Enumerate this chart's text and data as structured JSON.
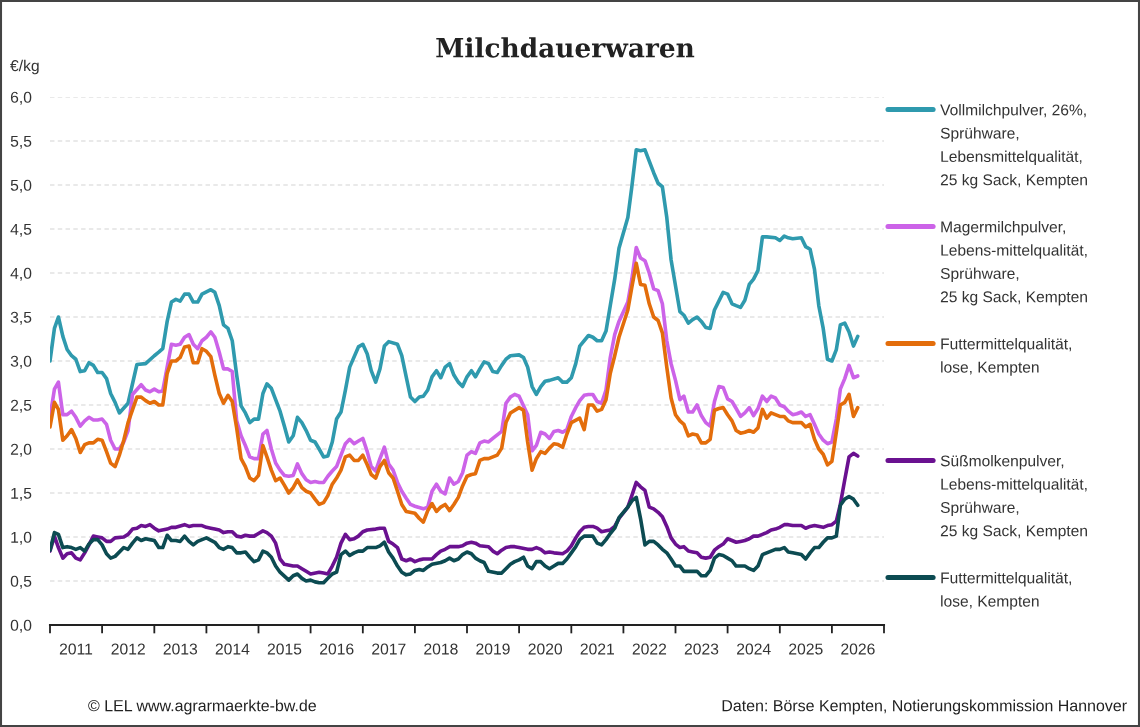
{
  "chart_data": {
    "type": "line",
    "title": "Milchdauerwaren",
    "ylabel": "€/kg",
    "annotations": [
      "© LEL www.agrarmaerkte-bw.de",
      "Daten: Börse Kempten, Notierungskommission Hannover"
    ],
    "xlim": [
      "2011-01-01",
      "2027-01-01"
    ],
    "xticks": [
      {
        "value": "2011-01-01",
        "label": null
      },
      {
        "value": "2012-01-01",
        "label": null
      },
      {
        "value": "2013-01-01",
        "label": null
      },
      {
        "value": "2014-01-01",
        "label": null
      },
      {
        "value": "2015-01-01",
        "label": null
      },
      {
        "value": "2016-01-01",
        "label": null
      },
      {
        "value": "2017-01-01",
        "label": null
      },
      {
        "value": "2018-01-01",
        "label": null
      },
      {
        "value": "2019-01-01",
        "label": null
      },
      {
        "value": "2020-01-01",
        "label": null
      },
      {
        "value": "2021-01-01",
        "label": null
      },
      {
        "value": "2022-01-01",
        "label": null
      },
      {
        "value": "2023-01-01",
        "label": null
      },
      {
        "value": "2024-01-01",
        "label": null
      },
      {
        "value": "2025-01-01",
        "label": null
      },
      {
        "value": "2026-01-01",
        "label": null
      },
      {
        "value": "2027-01-01",
        "label": null
      },
      {
        "value": "2011-07-02",
        "label": "2011"
      },
      {
        "value": "2012-07-02",
        "label": "2012"
      },
      {
        "value": "2013-07-02",
        "label": "2013"
      },
      {
        "value": "2014-07-02",
        "label": "2014"
      },
      {
        "value": "2015-07-02",
        "label": "2015"
      },
      {
        "value": "2016-07-02",
        "label": "2016"
      },
      {
        "value": "2017-07-02",
        "label": "2017"
      },
      {
        "value": "2018-07-02",
        "label": "2018"
      },
      {
        "value": "2019-07-02",
        "label": "2019"
      },
      {
        "value": "2020-07-02",
        "label": "2020"
      },
      {
        "value": "2021-07-02",
        "label": "2021"
      },
      {
        "value": "2022-07-02",
        "label": "2022"
      },
      {
        "value": "2023-07-02",
        "label": "2023"
      },
      {
        "value": "2024-07-02",
        "label": "2024"
      },
      {
        "value": "2025-07-02",
        "label": "2025"
      },
      {
        "value": "2026-07-02",
        "label": "2026"
      }
    ],
    "ylim": [
      0,
      6
    ],
    "yticks": [
      {
        "value": 0,
        "label": "0,0"
      },
      {
        "value": 0.5,
        "label": "0,5"
      },
      {
        "value": 1,
        "label": "1,0"
      },
      {
        "value": 1.5,
        "label": "1,5"
      },
      {
        "value": 2,
        "label": "2,0"
      },
      {
        "value": 2.5,
        "label": "2,5"
      },
      {
        "value": 3,
        "label": "3,0"
      },
      {
        "value": 3.5,
        "label": "3,5"
      },
      {
        "value": 4,
        "label": "4,0"
      },
      {
        "value": 4.5,
        "label": "4,5"
      },
      {
        "value": 5,
        "label": "5,0"
      },
      {
        "value": 5.5,
        "label": "5,5"
      },
      {
        "value": 6,
        "label": "6,0"
      }
    ],
    "grid": "y",
    "legend": "right",
    "series": [
      {
        "name": "Vollmilchpulver, 26%,\nSprühware,\nLebensmittelqualität,\n25 kg Sack, Kempten",
        "color": "#2f9aae",
        "x": [
          "2011-01",
          "2011-02",
          "2011-03",
          "2011-04",
          "2011-05",
          "2011-06",
          "2011-07",
          "2011-08",
          "2011-09",
          "2011-10",
          "2011-11",
          "2011-12",
          "2012-01",
          "2012-02",
          "2012-03",
          "2012-04",
          "2012-05",
          "2012-07",
          "2012-09",
          "2012-11",
          "2013-01",
          "2013-02",
          "2013-03",
          "2013-04",
          "2013-05",
          "2013-06",
          "2013-07",
          "2013-08",
          "2013-09",
          "2013-10",
          "2013-11",
          "2013-12",
          "2014-02",
          "2014-03",
          "2014-04",
          "2014-05",
          "2014-06",
          "2014-07",
          "2014-08",
          "2014-09",
          "2014-10",
          "2014-11",
          "2014-12",
          "2015-01",
          "2015-02",
          "2015-03",
          "2015-04",
          "2015-05",
          "2015-06",
          "2015-07",
          "2015-08",
          "2015-09",
          "2015-10",
          "2015-11",
          "2015-12",
          "2016-01",
          "2016-02",
          "2016-03",
          "2016-04",
          "2016-05",
          "2016-06",
          "2016-07",
          "2016-08",
          "2016-09",
          "2016-10",
          "2016-12",
          "2017-01",
          "2017-02",
          "2017-03",
          "2017-04",
          "2017-05",
          "2017-06",
          "2017-07",
          "2017-09",
          "2017-10",
          "2017-11",
          "2017-12",
          "2018-01",
          "2018-02",
          "2018-03",
          "2018-04",
          "2018-05",
          "2018-06",
          "2018-07",
          "2018-08",
          "2018-09",
          "2018-10",
          "2018-11",
          "2018-12",
          "2019-01",
          "2019-02",
          "2019-03",
          "2019-04",
          "2019-05",
          "2019-06",
          "2019-07",
          "2019-08",
          "2019-09",
          "2019-10",
          "2019-11",
          "2020-01",
          "2020-02",
          "2020-03",
          "2020-04",
          "2020-05",
          "2020-06",
          "2020-07",
          "2020-08",
          "2020-10",
          "2020-11",
          "2020-12",
          "2021-01",
          "2021-02",
          "2021-03",
          "2021-05",
          "2021-06",
          "2021-07",
          "2021-08",
          "2021-09",
          "2021-10",
          "2021-11",
          "2021-12",
          "2022-02",
          "2022-03",
          "2022-04",
          "2022-05",
          "2022-06",
          "2022-07",
          "2022-08",
          "2022-09",
          "2022-10",
          "2022-11",
          "2022-12",
          "2023-02",
          "2023-03",
          "2023-04",
          "2023-05",
          "2023-06",
          "2023-07",
          "2023-08",
          "2023-09",
          "2023-10",
          "2023-12",
          "2024-01",
          "2024-02",
          "2024-03",
          "2024-04",
          "2024-05",
          "2024-06",
          "2024-07",
          "2024-08",
          "2024-09",
          "2024-10",
          "2024-12",
          "2025-01",
          "2025-02",
          "2025-03",
          "2025-04",
          "2025-06",
          "2025-07",
          "2025-08",
          "2025-09",
          "2025-10",
          "2025-11",
          "2025-12",
          "2026-01",
          "2026-02",
          "2026-03",
          "2026-04",
          "2026-05",
          "2026-06",
          "2026-07"
        ],
        "values": [
          3.0,
          3.37,
          3.5,
          3.28,
          3.13,
          3.06,
          3.02,
          2.88,
          2.89,
          2.98,
          2.95,
          2.87,
          2.87,
          2.8,
          2.63,
          2.53,
          2.41,
          2.52,
          2.96,
          2.97,
          3.06,
          3.1,
          3.14,
          3.45,
          3.67,
          3.7,
          3.68,
          3.76,
          3.76,
          3.67,
          3.67,
          3.76,
          3.81,
          3.78,
          3.63,
          3.41,
          3.37,
          3.23,
          2.84,
          2.49,
          2.41,
          2.3,
          2.34,
          2.34,
          2.63,
          2.74,
          2.69,
          2.56,
          2.43,
          2.26,
          2.08,
          2.15,
          2.36,
          2.3,
          2.21,
          2.1,
          2.08,
          2.0,
          1.91,
          1.92,
          2.08,
          2.34,
          2.42,
          2.67,
          2.93,
          3.16,
          3.19,
          3.08,
          2.89,
          2.76,
          2.91,
          3.17,
          3.22,
          3.19,
          3.06,
          2.82,
          2.59,
          2.54,
          2.59,
          2.6,
          2.67,
          2.82,
          2.89,
          2.81,
          2.93,
          2.97,
          2.84,
          2.76,
          2.71,
          2.82,
          2.89,
          2.82,
          2.91,
          2.99,
          2.97,
          2.88,
          2.87,
          2.95,
          3.02,
          3.06,
          3.07,
          3.04,
          2.93,
          2.71,
          2.62,
          2.71,
          2.77,
          2.78,
          2.81,
          2.76,
          2.76,
          2.81,
          2.97,
          3.17,
          3.29,
          3.27,
          3.23,
          3.23,
          3.34,
          3.63,
          3.93,
          4.28,
          4.63,
          4.98,
          5.4,
          5.39,
          5.4,
          5.27,
          5.14,
          5.02,
          4.98,
          4.63,
          4.15,
          3.56,
          3.52,
          3.43,
          3.47,
          3.5,
          3.45,
          3.38,
          3.37,
          3.58,
          3.78,
          3.76,
          3.65,
          3.63,
          3.61,
          3.69,
          3.87,
          3.93,
          4.03,
          4.41,
          4.41,
          4.4,
          4.37,
          4.42,
          4.4,
          4.39,
          4.4,
          4.3,
          4.27,
          4.04,
          3.63,
          3.37,
          3.02,
          3.0,
          3.13,
          3.41,
          3.43,
          3.33,
          3.17,
          3.28
        ]
      },
      {
        "name": "Magermilchpulver,\nLebens-mittelqualität,\nSprühware,\n25 kg Sack, Kempten",
        "color": "#cc63e8",
        "x": [
          "2011-01",
          "2011-02",
          "2011-03",
          "2011-04",
          "2011-05",
          "2011-06",
          "2011-07",
          "2011-08",
          "2011-09",
          "2011-10",
          "2011-11",
          "2011-12",
          "2012-01",
          "2012-02",
          "2012-03",
          "2012-04",
          "2012-05",
          "2012-06",
          "2012-07",
          "2012-08",
          "2012-10",
          "2012-11",
          "2012-12",
          "2013-01",
          "2013-02",
          "2013-03",
          "2013-04",
          "2013-05",
          "2013-06",
          "2013-07",
          "2013-08",
          "2013-09",
          "2013-10",
          "2013-11",
          "2013-12",
          "2014-01",
          "2014-02",
          "2014-03",
          "2014-04",
          "2014-05",
          "2014-06",
          "2014-07",
          "2014-08",
          "2014-09",
          "2014-10",
          "2014-11",
          "2014-12",
          "2015-01",
          "2015-02",
          "2015-03",
          "2015-04",
          "2015-05",
          "2015-06",
          "2015-07",
          "2015-08",
          "2015-09",
          "2015-10",
          "2015-11",
          "2015-12",
          "2016-01",
          "2016-02",
          "2016-03",
          "2016-04",
          "2016-05",
          "2016-06",
          "2016-07",
          "2016-08",
          "2016-09",
          "2016-10",
          "2016-11",
          "2016-12",
          "2017-01",
          "2017-02",
          "2017-03",
          "2017-04",
          "2017-05",
          "2017-06",
          "2017-07",
          "2017-08",
          "2017-09",
          "2017-10",
          "2017-11",
          "2017-12",
          "2018-01",
          "2018-03",
          "2018-04",
          "2018-05",
          "2018-06",
          "2018-07",
          "2018-08",
          "2018-09",
          "2018-10",
          "2018-11",
          "2018-12",
          "2019-01",
          "2019-02",
          "2019-03",
          "2019-04",
          "2019-05",
          "2019-06",
          "2019-07",
          "2019-09",
          "2019-10",
          "2019-11",
          "2019-12",
          "2020-01",
          "2020-03",
          "2020-04",
          "2020-05",
          "2020-06",
          "2020-07",
          "2020-08",
          "2020-09",
          "2020-10",
          "2020-11",
          "2020-12",
          "2021-01",
          "2021-02",
          "2021-03",
          "2021-04",
          "2021-05",
          "2021-06",
          "2021-07",
          "2021-08",
          "2021-09",
          "2021-10",
          "2021-11",
          "2021-12",
          "2022-02",
          "2022-03",
          "2022-04",
          "2022-05",
          "2022-06",
          "2022-07",
          "2022-08",
          "2022-09",
          "2022-10",
          "2022-11",
          "2022-12",
          "2023-01",
          "2023-02",
          "2023-03",
          "2023-04",
          "2023-05",
          "2023-06",
          "2023-07",
          "2023-08",
          "2023-09",
          "2023-10",
          "2023-11",
          "2023-12",
          "2024-01",
          "2024-02",
          "2024-03",
          "2024-04",
          "2024-05",
          "2024-06",
          "2024-07",
          "2024-08",
          "2024-09",
          "2024-10",
          "2024-11",
          "2024-12",
          "2025-01",
          "2025-02",
          "2025-03",
          "2025-04",
          "2025-05",
          "2025-06",
          "2025-07",
          "2025-08",
          "2025-09",
          "2025-10",
          "2025-11",
          "2025-12",
          "2026-01",
          "2026-02",
          "2026-03",
          "2026-04",
          "2026-05",
          "2026-06",
          "2026-07"
        ],
        "values": [
          2.36,
          2.68,
          2.76,
          2.39,
          2.39,
          2.43,
          2.36,
          2.26,
          2.32,
          2.36,
          2.33,
          2.33,
          2.34,
          2.28,
          2.1,
          2.0,
          2.0,
          2.08,
          2.21,
          2.62,
          2.73,
          2.67,
          2.65,
          2.68,
          2.65,
          2.66,
          2.93,
          3.19,
          3.18,
          3.19,
          3.27,
          3.3,
          3.19,
          3.14,
          3.23,
          3.27,
          3.33,
          3.27,
          3.1,
          2.91,
          2.91,
          2.88,
          2.32,
          2.15,
          2.04,
          1.91,
          1.89,
          1.89,
          2.17,
          2.21,
          2.0,
          1.84,
          1.76,
          1.7,
          1.69,
          1.7,
          1.83,
          1.72,
          1.65,
          1.62,
          1.63,
          1.62,
          1.62,
          1.69,
          1.75,
          1.8,
          1.93,
          2.06,
          2.11,
          2.06,
          2.09,
          2.12,
          1.97,
          1.8,
          1.75,
          1.89,
          2.02,
          1.83,
          1.76,
          1.62,
          1.52,
          1.44,
          1.37,
          1.35,
          1.32,
          1.34,
          1.52,
          1.6,
          1.52,
          1.49,
          1.67,
          1.6,
          1.63,
          1.73,
          1.93,
          1.97,
          1.95,
          2.07,
          2.09,
          2.08,
          2.12,
          2.2,
          2.52,
          2.59,
          2.62,
          2.6,
          2.39,
          1.98,
          2.04,
          2.19,
          2.17,
          2.12,
          2.2,
          2.21,
          2.19,
          2.22,
          2.37,
          2.47,
          2.55,
          2.61,
          2.62,
          2.62,
          2.54,
          2.52,
          2.67,
          3.04,
          3.3,
          3.45,
          3.67,
          3.93,
          4.29,
          4.17,
          4.14,
          4.0,
          3.82,
          3.8,
          3.65,
          3.23,
          2.97,
          2.78,
          2.56,
          2.6,
          2.42,
          2.42,
          2.5,
          2.38,
          2.3,
          2.26,
          2.54,
          2.71,
          2.7,
          2.57,
          2.54,
          2.46,
          2.37,
          2.41,
          2.47,
          2.38,
          2.46,
          2.6,
          2.54,
          2.6,
          2.58,
          2.5,
          2.48,
          2.43,
          2.39,
          2.4,
          2.42,
          2.37,
          2.39,
          2.28,
          2.17,
          2.1,
          2.06,
          2.08,
          2.34,
          2.68,
          2.8,
          2.95,
          2.81,
          2.83
        ]
      },
      {
        "name": "Futtermittelqualität,\nlose, Kempten",
        "color": "#e36d0b",
        "x": [
          "2011-01",
          "2011-02",
          "2011-03",
          "2011-04",
          "2011-05",
          "2011-06",
          "2011-07",
          "2011-08",
          "2011-09",
          "2011-10",
          "2011-11",
          "2011-12",
          "2012-01",
          "2012-02",
          "2012-03",
          "2012-04",
          "2012-05",
          "2012-06",
          "2012-07",
          "2012-09",
          "2012-10",
          "2012-11",
          "2012-12",
          "2013-01",
          "2013-02",
          "2013-03",
          "2013-04",
          "2013-05",
          "2013-06",
          "2013-07",
          "2013-08",
          "2013-09",
          "2013-10",
          "2013-11",
          "2013-12",
          "2014-01",
          "2014-02",
          "2014-03",
          "2014-04",
          "2014-05",
          "2014-06",
          "2014-07",
          "2014-08",
          "2014-09",
          "2014-10",
          "2014-11",
          "2014-12",
          "2015-01",
          "2015-02",
          "2015-03",
          "2015-04",
          "2015-05",
          "2015-06",
          "2015-07",
          "2015-08",
          "2015-09",
          "2015-10",
          "2015-11",
          "2015-12",
          "2016-01",
          "2016-02",
          "2016-03",
          "2016-04",
          "2016-05",
          "2016-06",
          "2016-07",
          "2016-08",
          "2016-09",
          "2016-10",
          "2016-11",
          "2016-12",
          "2017-01",
          "2017-02",
          "2017-03",
          "2017-04",
          "2017-05",
          "2017-06",
          "2017-07",
          "2017-08",
          "2017-09",
          "2017-10",
          "2017-11",
          "2018-01",
          "2018-02",
          "2018-03",
          "2018-04",
          "2018-05",
          "2018-06",
          "2018-07",
          "2018-08",
          "2018-09",
          "2018-10",
          "2018-11",
          "2018-12",
          "2019-01",
          "2019-02",
          "2019-03",
          "2019-04",
          "2019-05",
          "2019-06",
          "2019-08",
          "2019-09",
          "2019-10",
          "2019-11",
          "2020-01",
          "2020-02",
          "2020-03",
          "2020-04",
          "2020-05",
          "2020-06",
          "2020-07",
          "2020-08",
          "2020-09",
          "2020-10",
          "2020-11",
          "2020-12",
          "2021-01",
          "2021-03",
          "2021-04",
          "2021-05",
          "2021-06",
          "2021-07",
          "2021-08",
          "2021-09",
          "2021-10",
          "2021-11",
          "2021-12",
          "2022-02",
          "2022-03",
          "2022-04",
          "2022-05",
          "2022-06",
          "2022-07",
          "2022-08",
          "2022-09",
          "2022-10",
          "2022-11",
          "2022-12",
          "2023-01",
          "2023-02",
          "2023-03",
          "2023-04",
          "2023-05",
          "2023-06",
          "2023-07",
          "2023-08",
          "2023-09",
          "2023-10",
          "2023-11",
          "2023-12",
          "2024-01",
          "2024-02",
          "2024-03",
          "2024-04",
          "2024-05",
          "2024-06",
          "2024-07",
          "2024-08",
          "2024-09",
          "2024-10",
          "2024-11",
          "2024-12",
          "2025-01",
          "2025-02",
          "2025-03",
          "2025-04",
          "2025-05",
          "2025-06",
          "2025-07",
          "2025-08",
          "2025-09",
          "2025-10",
          "2025-11",
          "2025-12",
          "2026-01",
          "2026-02",
          "2026-03",
          "2026-04",
          "2026-05",
          "2026-06",
          "2026-07"
        ],
        "values": [
          2.25,
          2.53,
          2.45,
          2.1,
          2.15,
          2.22,
          2.12,
          1.96,
          2.05,
          2.07,
          2.07,
          2.11,
          2.1,
          1.97,
          1.84,
          1.8,
          1.93,
          2.1,
          2.3,
          2.59,
          2.59,
          2.55,
          2.52,
          2.54,
          2.5,
          2.5,
          2.86,
          3.0,
          3.0,
          3.04,
          3.16,
          3.17,
          2.98,
          2.98,
          3.14,
          3.11,
          3.05,
          2.84,
          2.63,
          2.52,
          2.61,
          2.54,
          2.24,
          1.89,
          1.8,
          1.67,
          1.64,
          1.7,
          2.04,
          1.91,
          1.76,
          1.64,
          1.67,
          1.59,
          1.5,
          1.56,
          1.65,
          1.56,
          1.52,
          1.5,
          1.43,
          1.37,
          1.39,
          1.47,
          1.6,
          1.67,
          1.76,
          1.91,
          1.93,
          1.87,
          1.87,
          1.93,
          1.82,
          1.71,
          1.67,
          1.8,
          1.87,
          1.73,
          1.67,
          1.52,
          1.37,
          1.29,
          1.27,
          1.21,
          1.17,
          1.3,
          1.38,
          1.29,
          1.34,
          1.37,
          1.3,
          1.37,
          1.45,
          1.58,
          1.69,
          1.71,
          1.72,
          1.87,
          1.89,
          1.89,
          1.93,
          2.01,
          2.3,
          2.41,
          2.47,
          2.44,
          2.08,
          1.76,
          1.89,
          1.97,
          1.95,
          2.01,
          2.06,
          2.05,
          2.02,
          2.17,
          2.3,
          2.35,
          2.22,
          2.5,
          2.5,
          2.43,
          2.45,
          2.56,
          2.86,
          3.06,
          3.27,
          3.58,
          3.84,
          4.11,
          3.87,
          3.86,
          3.65,
          3.5,
          3.46,
          3.32,
          2.93,
          2.58,
          2.39,
          2.32,
          2.28,
          2.15,
          2.17,
          2.16,
          2.07,
          2.07,
          2.11,
          2.44,
          2.46,
          2.47,
          2.39,
          2.32,
          2.21,
          2.18,
          2.19,
          2.21,
          2.19,
          2.24,
          2.45,
          2.35,
          2.41,
          2.39,
          2.37,
          2.37,
          2.32,
          2.3,
          2.3,
          2.3,
          2.25,
          2.28,
          2.11,
          2.0,
          1.94,
          1.82,
          1.86,
          2.19,
          2.5,
          2.53,
          2.62,
          2.37,
          2.47
        ]
      },
      {
        "name": "Süßmolkenpulver,\nLebens-mittelqualität,\nSprühware,\n25 kg Sack, Kempten",
        "color": "#6a1190",
        "x": [
          "2011-01",
          "2011-02",
          "2011-03",
          "2011-04",
          "2011-05",
          "2011-06",
          "2011-07",
          "2011-08",
          "2011-09",
          "2011-10",
          "2011-11",
          "2011-12",
          "2012-01",
          "2012-02",
          "2012-03",
          "2012-04",
          "2012-06",
          "2012-07",
          "2012-08",
          "2012-09",
          "2012-10",
          "2012-11",
          "2012-12",
          "2013-01",
          "2013-02",
          "2013-04",
          "2013-05",
          "2013-06",
          "2013-08",
          "2013-09",
          "2013-10",
          "2013-12",
          "2014-01",
          "2014-02",
          "2014-03",
          "2014-04",
          "2014-05",
          "2014-06",
          "2014-07",
          "2014-08",
          "2014-09",
          "2014-10",
          "2014-11",
          "2014-12",
          "2015-01",
          "2015-02",
          "2015-03",
          "2015-04",
          "2015-05",
          "2015-06",
          "2015-07",
          "2015-09",
          "2015-10",
          "2015-11",
          "2015-12",
          "2016-01",
          "2016-03",
          "2016-04",
          "2016-05",
          "2016-06",
          "2016-07",
          "2016-08",
          "2016-09",
          "2016-10",
          "2016-11",
          "2016-12",
          "2017-01",
          "2017-02",
          "2017-04",
          "2017-05",
          "2017-06",
          "2017-07",
          "2017-08",
          "2017-09",
          "2017-10",
          "2017-11",
          "2017-12",
          "2018-01",
          "2018-02",
          "2018-03",
          "2018-05",
          "2018-06",
          "2018-07",
          "2018-08",
          "2018-09",
          "2018-10",
          "2018-11",
          "2018-12",
          "2019-01",
          "2019-02",
          "2019-03",
          "2019-04",
          "2019-06",
          "2019-07",
          "2019-08",
          "2019-09",
          "2019-10",
          "2019-11",
          "2019-12",
          "2020-01",
          "2020-03",
          "2020-04",
          "2020-05",
          "2020-06",
          "2020-07",
          "2020-08",
          "2020-09",
          "2020-11",
          "2020-12",
          "2021-01",
          "2021-02",
          "2021-03",
          "2021-04",
          "2021-05",
          "2021-06",
          "2021-07",
          "2021-08",
          "2021-09",
          "2021-10",
          "2021-11",
          "2021-12",
          "2022-02",
          "2022-03",
          "2022-04",
          "2022-05",
          "2022-06",
          "2022-07",
          "2022-08",
          "2022-09",
          "2022-10",
          "2022-11",
          "2022-12",
          "2023-01",
          "2023-02",
          "2023-03",
          "2023-04",
          "2023-05",
          "2023-06",
          "2023-07",
          "2023-08",
          "2023-09",
          "2023-10",
          "2023-11",
          "2023-12",
          "2024-01",
          "2024-02",
          "2024-03",
          "2024-04",
          "2024-05",
          "2024-06",
          "2024-07",
          "2024-08",
          "2024-09",
          "2024-10",
          "2024-11",
          "2024-12",
          "2025-01",
          "2025-02",
          "2025-03",
          "2025-04",
          "2025-06",
          "2025-07",
          "2025-08",
          "2025-09",
          "2025-11",
          "2025-12",
          "2026-01",
          "2026-02",
          "2026-03",
          "2026-04",
          "2026-05",
          "2026-06",
          "2026-07"
        ],
        "values": [
          0.84,
          1.01,
          0.88,
          0.76,
          0.81,
          0.82,
          0.76,
          0.74,
          0.82,
          0.91,
          1.01,
          1.0,
          0.99,
          0.95,
          0.95,
          0.99,
          1.0,
          1.03,
          1.09,
          1.1,
          1.13,
          1.12,
          1.14,
          1.1,
          1.07,
          1.09,
          1.11,
          1.11,
          1.14,
          1.12,
          1.13,
          1.13,
          1.11,
          1.1,
          1.09,
          1.08,
          1.05,
          1.06,
          1.06,
          1.01,
          1.0,
          1.02,
          1.01,
          1.01,
          1.04,
          1.07,
          1.05,
          1.01,
          0.93,
          0.75,
          0.69,
          0.67,
          0.67,
          0.64,
          0.61,
          0.58,
          0.6,
          0.59,
          0.58,
          0.67,
          0.77,
          0.93,
          1.03,
          0.97,
          0.98,
          1.01,
          1.06,
          1.08,
          1.09,
          1.1,
          1.1,
          0.95,
          0.92,
          0.88,
          0.75,
          0.73,
          0.75,
          0.72,
          0.74,
          0.75,
          0.75,
          0.8,
          0.84,
          0.86,
          0.89,
          0.89,
          0.89,
          0.9,
          0.93,
          0.94,
          0.93,
          0.9,
          0.89,
          0.84,
          0.81,
          0.85,
          0.88,
          0.89,
          0.89,
          0.88,
          0.86,
          0.86,
          0.88,
          0.86,
          0.82,
          0.83,
          0.82,
          0.81,
          0.84,
          0.9,
          0.99,
          1.06,
          1.11,
          1.12,
          1.12,
          1.1,
          1.06,
          1.07,
          1.08,
          1.12,
          1.21,
          1.34,
          1.47,
          1.62,
          1.57,
          1.53,
          1.34,
          1.32,
          1.28,
          1.23,
          1.12,
          0.99,
          0.92,
          0.88,
          0.89,
          0.84,
          0.83,
          0.82,
          0.77,
          0.76,
          0.77,
          0.85,
          0.89,
          0.92,
          0.98,
          0.96,
          0.94,
          0.95,
          0.96,
          0.98,
          1.01,
          1.01,
          1.03,
          1.05,
          1.08,
          1.09,
          1.11,
          1.14,
          1.14,
          1.13,
          1.13,
          1.1,
          1.12,
          1.13,
          1.11,
          1.13,
          1.14,
          1.18,
          1.37,
          1.65,
          1.91,
          1.95,
          1.92
        ]
      },
      {
        "name": "Futtermittelqualität,\nlose, Kempten",
        "color": "#0c4b52",
        "x": [
          "2011-01",
          "2011-02",
          "2011-03",
          "2011-04",
          "2011-05",
          "2011-06",
          "2011-07",
          "2011-08",
          "2011-09",
          "2011-10",
          "2011-11",
          "2011-12",
          "2012-01",
          "2012-02",
          "2012-03",
          "2012-04",
          "2012-06",
          "2012-07",
          "2012-08",
          "2012-09",
          "2012-10",
          "2012-11",
          "2012-12",
          "2013-01",
          "2013-02",
          "2013-03",
          "2013-04",
          "2013-05",
          "2013-06",
          "2013-07",
          "2013-08",
          "2013-09",
          "2013-10",
          "2013-11",
          "2013-12",
          "2014-01",
          "2014-03",
          "2014-04",
          "2014-05",
          "2014-06",
          "2014-07",
          "2014-08",
          "2014-09",
          "2014-10",
          "2014-11",
          "2014-12",
          "2015-01",
          "2015-02",
          "2015-03",
          "2015-04",
          "2015-05",
          "2015-06",
          "2015-08",
          "2015-09",
          "2015-10",
          "2015-11",
          "2015-12",
          "2016-01",
          "2016-02",
          "2016-03",
          "2016-04",
          "2016-05",
          "2016-06",
          "2016-07",
          "2016-08",
          "2016-09",
          "2016-10",
          "2016-11",
          "2016-12",
          "2017-01",
          "2017-02",
          "2017-04",
          "2017-05",
          "2017-06",
          "2017-07",
          "2017-08",
          "2017-09",
          "2017-10",
          "2017-11",
          "2017-12",
          "2018-01",
          "2018-02",
          "2018-03",
          "2018-04",
          "2018-05",
          "2018-07",
          "2018-08",
          "2018-09",
          "2018-10",
          "2018-11",
          "2018-12",
          "2019-01",
          "2019-02",
          "2019-03",
          "2019-04",
          "2019-05",
          "2019-06",
          "2019-08",
          "2019-09",
          "2019-10",
          "2019-11",
          "2019-12",
          "2020-01",
          "2020-02",
          "2020-03",
          "2020-04",
          "2020-05",
          "2020-06",
          "2020-07",
          "2020-08",
          "2020-09",
          "2020-10",
          "2020-11",
          "2020-12",
          "2021-01",
          "2021-02",
          "2021-03",
          "2021-04",
          "2021-05",
          "2021-06",
          "2021-07",
          "2021-08",
          "2021-09",
          "2021-10",
          "2021-11",
          "2021-12",
          "2022-02",
          "2022-03",
          "2022-04",
          "2022-05",
          "2022-06",
          "2022-07",
          "2022-08",
          "2022-09",
          "2022-10",
          "2022-11",
          "2022-12",
          "2023-01",
          "2023-02",
          "2023-03",
          "2023-04",
          "2023-05",
          "2023-06",
          "2023-07",
          "2023-08",
          "2023-09",
          "2023-10",
          "2023-11",
          "2023-12",
          "2024-01",
          "2024-02",
          "2024-03",
          "2024-04",
          "2024-05",
          "2024-06",
          "2024-07",
          "2024-08",
          "2024-09",
          "2024-10",
          "2024-11",
          "2024-12",
          "2025-01",
          "2025-02",
          "2025-03",
          "2025-04",
          "2025-06",
          "2025-07",
          "2025-08",
          "2025-09",
          "2025-10",
          "2025-11",
          "2025-12",
          "2026-01",
          "2026-02",
          "2026-03",
          "2026-04",
          "2026-05",
          "2026-06",
          "2026-07"
        ],
        "values": [
          0.85,
          1.05,
          1.03,
          0.88,
          0.89,
          0.88,
          0.86,
          0.88,
          0.84,
          0.92,
          0.97,
          0.97,
          0.91,
          0.81,
          0.76,
          0.78,
          0.88,
          0.86,
          0.93,
          0.99,
          0.96,
          0.98,
          0.97,
          0.96,
          0.88,
          0.88,
          1.02,
          0.96,
          0.96,
          0.95,
          1.01,
          0.95,
          0.91,
          0.95,
          0.97,
          0.99,
          0.94,
          0.88,
          0.86,
          0.89,
          0.88,
          0.82,
          0.82,
          0.83,
          0.77,
          0.72,
          0.74,
          0.84,
          0.82,
          0.77,
          0.67,
          0.6,
          0.51,
          0.56,
          0.58,
          0.53,
          0.5,
          0.51,
          0.49,
          0.48,
          0.48,
          0.53,
          0.58,
          0.6,
          0.8,
          0.84,
          0.79,
          0.82,
          0.84,
          0.84,
          0.88,
          0.88,
          0.9,
          0.94,
          0.83,
          0.76,
          0.67,
          0.6,
          0.57,
          0.58,
          0.62,
          0.63,
          0.62,
          0.66,
          0.69,
          0.71,
          0.73,
          0.76,
          0.73,
          0.75,
          0.8,
          0.83,
          0.81,
          0.76,
          0.73,
          0.71,
          0.61,
          0.59,
          0.59,
          0.64,
          0.69,
          0.72,
          0.74,
          0.77,
          0.67,
          0.64,
          0.72,
          0.72,
          0.67,
          0.64,
          0.67,
          0.7,
          0.7,
          0.75,
          0.82,
          0.89,
          0.97,
          1.01,
          1.01,
          1.01,
          0.93,
          0.91,
          0.97,
          1.04,
          1.1,
          1.22,
          1.34,
          1.41,
          1.45,
          1.21,
          0.91,
          0.95,
          0.95,
          0.91,
          0.86,
          0.82,
          0.75,
          0.67,
          0.67,
          0.61,
          0.61,
          0.61,
          0.61,
          0.56,
          0.56,
          0.62,
          0.76,
          0.8,
          0.79,
          0.76,
          0.73,
          0.67,
          0.67,
          0.67,
          0.64,
          0.62,
          0.67,
          0.8,
          0.82,
          0.84,
          0.86,
          0.86,
          0.88,
          0.83,
          0.82,
          0.8,
          0.75,
          0.82,
          0.88,
          0.88,
          0.94,
          0.99,
          0.99,
          1.01,
          1.36,
          1.43,
          1.46,
          1.43,
          1.36
        ]
      }
    ]
  }
}
